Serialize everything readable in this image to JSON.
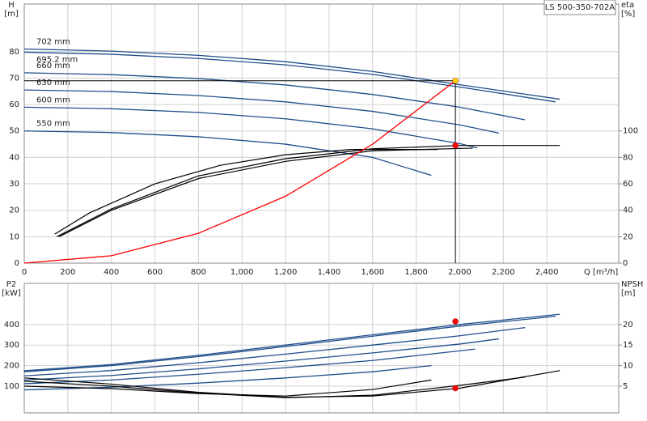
{
  "chart_data": [
    {
      "type": "line",
      "title": "LS 500-350-702A",
      "ylabel": [
        "H",
        "[m]"
      ],
      "y2label": [
        "eta",
        "[%]"
      ],
      "xlabel": "Q [m³/h]",
      "xlim": [
        0,
        2730
      ],
      "xticks": [
        0,
        200,
        400,
        600,
        800,
        {
          "value": 1000,
          "label": "1,000"
        },
        {
          "value": 1200,
          "label": "1,200"
        },
        {
          "value": 1400,
          "label": "1,400"
        },
        {
          "value": 1600,
          "label": "1,600"
        },
        {
          "value": 1800,
          "label": "1,800"
        },
        {
          "value": 2000,
          "label": "2,000"
        },
        {
          "value": 2200,
          "label": "2,200"
        },
        {
          "value": 2400,
          "label": "2,400"
        }
      ],
      "ylim": [
        0,
        98
      ],
      "yticks": [
        0,
        10,
        20,
        30,
        40,
        50,
        60,
        70,
        80
      ],
      "y2lim": [
        0,
        196
      ],
      "y2ticks": [
        0,
        20,
        40,
        60,
        80,
        100
      ],
      "grid": true,
      "series": [
        {
          "name": "702 mm",
          "color": "#1f4e8c",
          "x": [
            0,
            400,
            800,
            1200,
            1600,
            2000,
            2460
          ],
          "values": [
            81,
            80.2,
            78.6,
            76.2,
            72.5,
            67.5,
            62
          ]
        },
        {
          "name": "695.2 mm",
          "color": "#1f4e8c",
          "x": [
            0,
            400,
            800,
            1200,
            1600,
            2000,
            2440
          ],
          "values": [
            79.8,
            79,
            77.4,
            75,
            71.4,
            66.6,
            61
          ]
        },
        {
          "name": "660 mm",
          "color": "#1f4e8c",
          "x": [
            0,
            400,
            800,
            1200,
            1600,
            2000,
            2300
          ],
          "values": [
            72,
            71.3,
            69.8,
            67.4,
            63.8,
            59,
            54.2
          ]
        },
        {
          "name": "630 mm",
          "color": "#1f4e8c",
          "x": [
            0,
            400,
            800,
            1200,
            1600,
            2000,
            2180
          ],
          "values": [
            65.5,
            64.9,
            63.4,
            61,
            57.4,
            52.3,
            49.2
          ]
        },
        {
          "name": "600 mm",
          "color": "#1f4e8c",
          "x": [
            0,
            400,
            800,
            1200,
            1600,
            2000,
            2080
          ],
          "values": [
            59,
            58.4,
            57,
            54.6,
            50.8,
            45.2,
            43.6
          ]
        },
        {
          "name": "550 mm",
          "color": "#1f4e8c",
          "x": [
            0,
            400,
            800,
            1200,
            1600,
            1870
          ],
          "values": [
            50,
            49.4,
            47.8,
            45,
            40,
            33.2
          ]
        },
        {
          "color": "#000000",
          "axis": "y2",
          "x": [
            150,
            400,
            800,
            1200,
            1600,
            2000,
            2460
          ],
          "values": [
            20,
            41,
            66,
            79,
            86.5,
            89,
            89
          ]
        },
        {
          "color": "#000000",
          "axis": "y2",
          "x": [
            140,
            300,
            600,
            900,
            1200,
            1500,
            1900
          ],
          "values": [
            22,
            38,
            60,
            74,
            82,
            86,
            86
          ]
        },
        {
          "color": "#000000",
          "axis": "y2",
          "x": [
            160,
            400,
            800,
            1200,
            1600,
            2060
          ],
          "values": [
            20,
            40,
            64,
            77,
            85,
            87
          ]
        },
        {
          "color": "#ff0000",
          "x": [
            0,
            400,
            800,
            1200,
            1600,
            1980
          ],
          "values": [
            0,
            2.8,
            11.3,
            25.3,
            45,
            69
          ]
        }
      ],
      "points": [
        {
          "x": 1980,
          "y": 69,
          "color": "#ffd700",
          "guide": true
        },
        {
          "x": 1980,
          "y": 89,
          "axis": "y2",
          "color": "#ff0000"
        }
      ]
    },
    {
      "type": "line",
      "ylabel": [
        "P2",
        "[kW]"
      ],
      "y2label": [
        "NPSH",
        "[m]"
      ],
      "ylim": [
        -30,
        600
      ],
      "yticks": [
        100,
        200,
        300,
        400
      ],
      "y2lim": [
        -1.5,
        30
      ],
      "y2ticks": [
        5,
        10,
        15,
        20
      ],
      "grid": true,
      "series": [
        {
          "color": "#1f4e8c",
          "x": [
            0,
            400,
            800,
            1200,
            1600,
            2000,
            2460
          ],
          "values": [
            175,
            205,
            250,
            300,
            350,
            400,
            450
          ]
        },
        {
          "color": "#1f4e8c",
          "x": [
            0,
            400,
            800,
            1200,
            1600,
            2000,
            2440
          ],
          "values": [
            170,
            200,
            244,
            293,
            343,
            392,
            440
          ]
        },
        {
          "color": "#1f4e8c",
          "x": [
            0,
            400,
            800,
            1200,
            1600,
            2000,
            2300
          ],
          "values": [
            150,
            176,
            214,
            256,
            300,
            345,
            385
          ]
        },
        {
          "color": "#1f4e8c",
          "x": [
            0,
            400,
            800,
            1200,
            1600,
            2000,
            2180
          ],
          "values": [
            130,
            152,
            184,
            222,
            262,
            305,
            330
          ]
        },
        {
          "color": "#1f4e8c",
          "x": [
            0,
            400,
            800,
            1200,
            1600,
            2070
          ],
          "values": [
            112,
            130,
            158,
            190,
            225,
            280
          ]
        },
        {
          "color": "#1f4e8c",
          "x": [
            0,
            400,
            800,
            1200,
            1600,
            1870
          ],
          "values": [
            82,
            95,
            115,
            140,
            170,
            200
          ]
        },
        {
          "color": "#000000",
          "axis": "y2",
          "x": [
            0,
            400,
            800,
            1200,
            1600,
            2000,
            2460
          ],
          "values": [
            7,
            5.5,
            3.5,
            2.3,
            2.6,
            4.5,
            8.8
          ]
        },
        {
          "color": "#000000",
          "axis": "y2",
          "x": [
            0,
            400,
            800,
            1200,
            1600,
            2000,
            2300
          ],
          "values": [
            6.2,
            5,
            3.3,
            2.2,
            2.8,
            5.2,
            7.2
          ]
        },
        {
          "color": "#000000",
          "axis": "y2",
          "x": [
            0,
            400,
            800,
            1200,
            1600,
            1870
          ],
          "values": [
            5,
            4.4,
            3.2,
            2.6,
            4.2,
            6.5
          ]
        }
      ],
      "points": [
        {
          "x": 1980,
          "y": 415,
          "color": "#ff0000"
        },
        {
          "x": 1980,
          "y": 4.5,
          "axis": "y2",
          "color": "#ff0000"
        }
      ]
    }
  ]
}
